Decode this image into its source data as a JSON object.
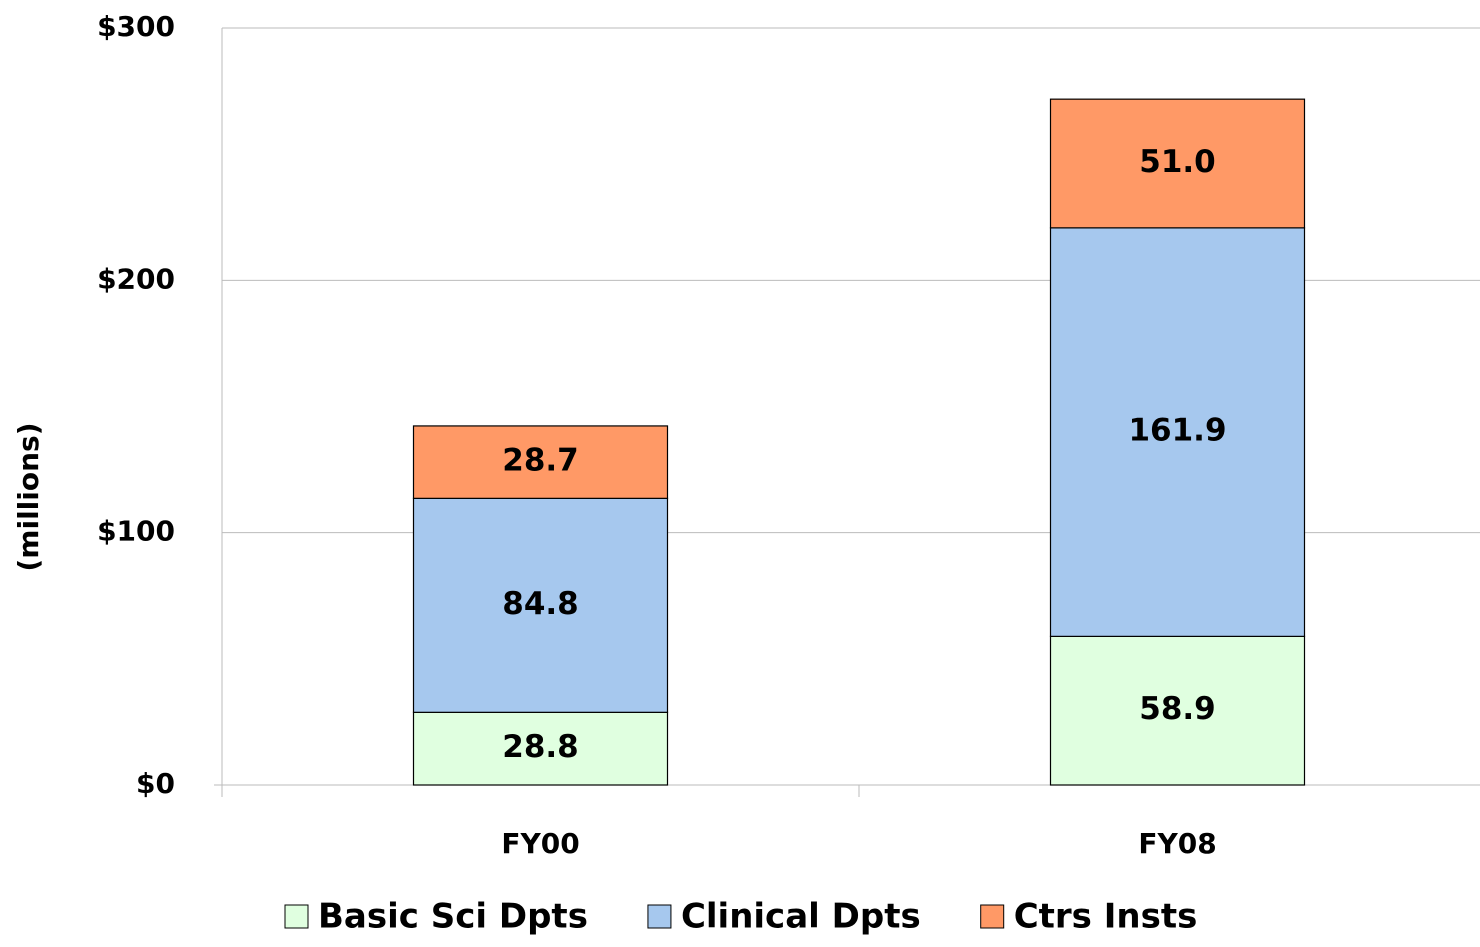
{
  "chart_data": {
    "type": "stacked-bar",
    "y_label": "(millions)",
    "categories": [
      "FY00",
      "FY08"
    ],
    "series": [
      {
        "name": "Basic Sci Dpts",
        "color": "#e0ffe0",
        "values": [
          28.8,
          58.9
        ]
      },
      {
        "name": "Clinical Dpts",
        "color": "#a6c8ee",
        "values": [
          84.8,
          161.9
        ]
      },
      {
        "name": "Ctrs Insts",
        "color": "#ff9966",
        "values": [
          28.7,
          51.0
        ],
        "value_labels": [
          "28.7",
          "51.0"
        ]
      }
    ],
    "ylim": [
      0,
      300
    ],
    "yticks": [
      {
        "value": 0,
        "label": "$0"
      },
      {
        "value": 100,
        "label": "$100"
      },
      {
        "value": 200,
        "label": "$200"
      },
      {
        "value": 300,
        "label": "$300"
      }
    ],
    "grid": true
  }
}
